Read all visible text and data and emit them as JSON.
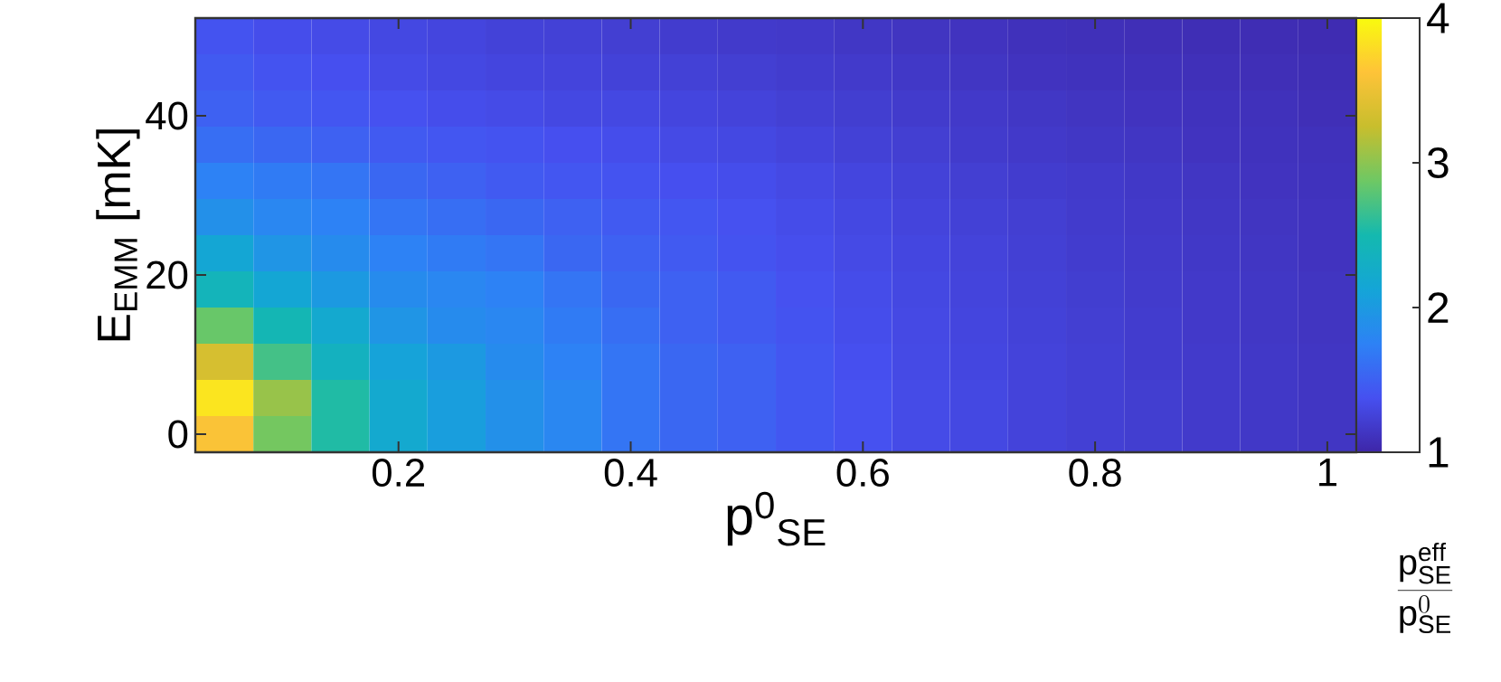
{
  "chart_data": {
    "type": "heatmap",
    "xlabel": "p$^{0}$$_{SE}$",
    "ylabel": "E$_{EMM}$ [mK]",
    "clabel": "\\frac{\\mathrm{p}_{\\mathrm{SE}}^{\\mathrm{eff}}}{\\mathrm{p}_{\\mathrm{SE}}^{0}}",
    "x": [
      0.05,
      0.1,
      0.15,
      0.2,
      0.25,
      0.3,
      0.35,
      0.4,
      0.45,
      0.5,
      0.55,
      0.6,
      0.65,
      0.7,
      0.75,
      0.8,
      0.85,
      0.9,
      0.95,
      1.0
    ],
    "y": [
      50,
      45.45,
      40.91,
      36.36,
      31.82,
      27.27,
      22.73,
      18.18,
      13.64,
      9.09,
      4.55,
      0
    ],
    "xlim": [
      0.025,
      1.025
    ],
    "ylim": [
      -2.27,
      52.27
    ],
    "xticks": [
      0.2,
      0.4,
      0.6,
      0.8,
      1
    ],
    "yticks": [
      0,
      20,
      40
    ],
    "clim": [
      1,
      4
    ],
    "cticks": [
      1,
      2,
      3,
      4
    ],
    "cells": [
      [
        1.4,
        1.35,
        1.33,
        1.3,
        1.28,
        1.25,
        1.24,
        1.22,
        1.2,
        1.18,
        1.17,
        1.15,
        1.13,
        1.12,
        1.1,
        1.09,
        1.08,
        1.07,
        1.06,
        1.05
      ],
      [
        1.45,
        1.4,
        1.37,
        1.33,
        1.3,
        1.28,
        1.27,
        1.25,
        1.24,
        1.22,
        1.2,
        1.18,
        1.16,
        1.14,
        1.12,
        1.11,
        1.1,
        1.09,
        1.08,
        1.07
      ],
      [
        1.5,
        1.45,
        1.42,
        1.38,
        1.35,
        1.33,
        1.3,
        1.3,
        1.28,
        1.26,
        1.23,
        1.21,
        1.19,
        1.17,
        1.15,
        1.13,
        1.12,
        1.11,
        1.1,
        1.08
      ],
      [
        1.6,
        1.55,
        1.5,
        1.45,
        1.42,
        1.4,
        1.37,
        1.35,
        1.32,
        1.3,
        1.27,
        1.24,
        1.22,
        1.19,
        1.17,
        1.15,
        1.14,
        1.12,
        1.11,
        1.1
      ],
      [
        1.75,
        1.7,
        1.65,
        1.55,
        1.5,
        1.45,
        1.42,
        1.4,
        1.37,
        1.35,
        1.31,
        1.28,
        1.25,
        1.22,
        1.2,
        1.18,
        1.16,
        1.14,
        1.12,
        1.11
      ],
      [
        1.9,
        1.8,
        1.75,
        1.65,
        1.6,
        1.55,
        1.5,
        1.45,
        1.42,
        1.38,
        1.34,
        1.3,
        1.27,
        1.24,
        1.22,
        1.19,
        1.17,
        1.15,
        1.13,
        1.12
      ],
      [
        2.15,
        1.95,
        1.85,
        1.75,
        1.7,
        1.65,
        1.55,
        1.5,
        1.45,
        1.4,
        1.36,
        1.32,
        1.29,
        1.26,
        1.23,
        1.2,
        1.18,
        1.16,
        1.14,
        1.12
      ],
      [
        2.4,
        2.15,
        2.0,
        1.85,
        1.8,
        1.75,
        1.65,
        1.55,
        1.5,
        1.45,
        1.38,
        1.34,
        1.3,
        1.27,
        1.24,
        1.21,
        1.19,
        1.17,
        1.15,
        1.13
      ],
      [
        2.85,
        2.45,
        2.2,
        1.95,
        1.85,
        1.8,
        1.7,
        1.6,
        1.5,
        1.45,
        1.4,
        1.35,
        1.31,
        1.28,
        1.25,
        1.22,
        1.2,
        1.17,
        1.15,
        1.13
      ],
      [
        3.35,
        2.7,
        2.35,
        2.1,
        2.0,
        1.85,
        1.75,
        1.65,
        1.55,
        1.5,
        1.42,
        1.37,
        1.32,
        1.29,
        1.26,
        1.23,
        1.2,
        1.18,
        1.16,
        1.14
      ],
      [
        3.85,
        3.05,
        2.55,
        2.2,
        2.05,
        1.9,
        1.8,
        1.65,
        1.55,
        1.5,
        1.43,
        1.38,
        1.33,
        1.3,
        1.26,
        1.23,
        1.21,
        1.18,
        1.16,
        1.14
      ],
      [
        3.6,
        2.9,
        2.55,
        2.2,
        2.05,
        1.9,
        1.8,
        1.65,
        1.55,
        1.5,
        1.43,
        1.38,
        1.33,
        1.3,
        1.26,
        1.23,
        1.21,
        1.18,
        1.16,
        1.14
      ]
    ]
  }
}
